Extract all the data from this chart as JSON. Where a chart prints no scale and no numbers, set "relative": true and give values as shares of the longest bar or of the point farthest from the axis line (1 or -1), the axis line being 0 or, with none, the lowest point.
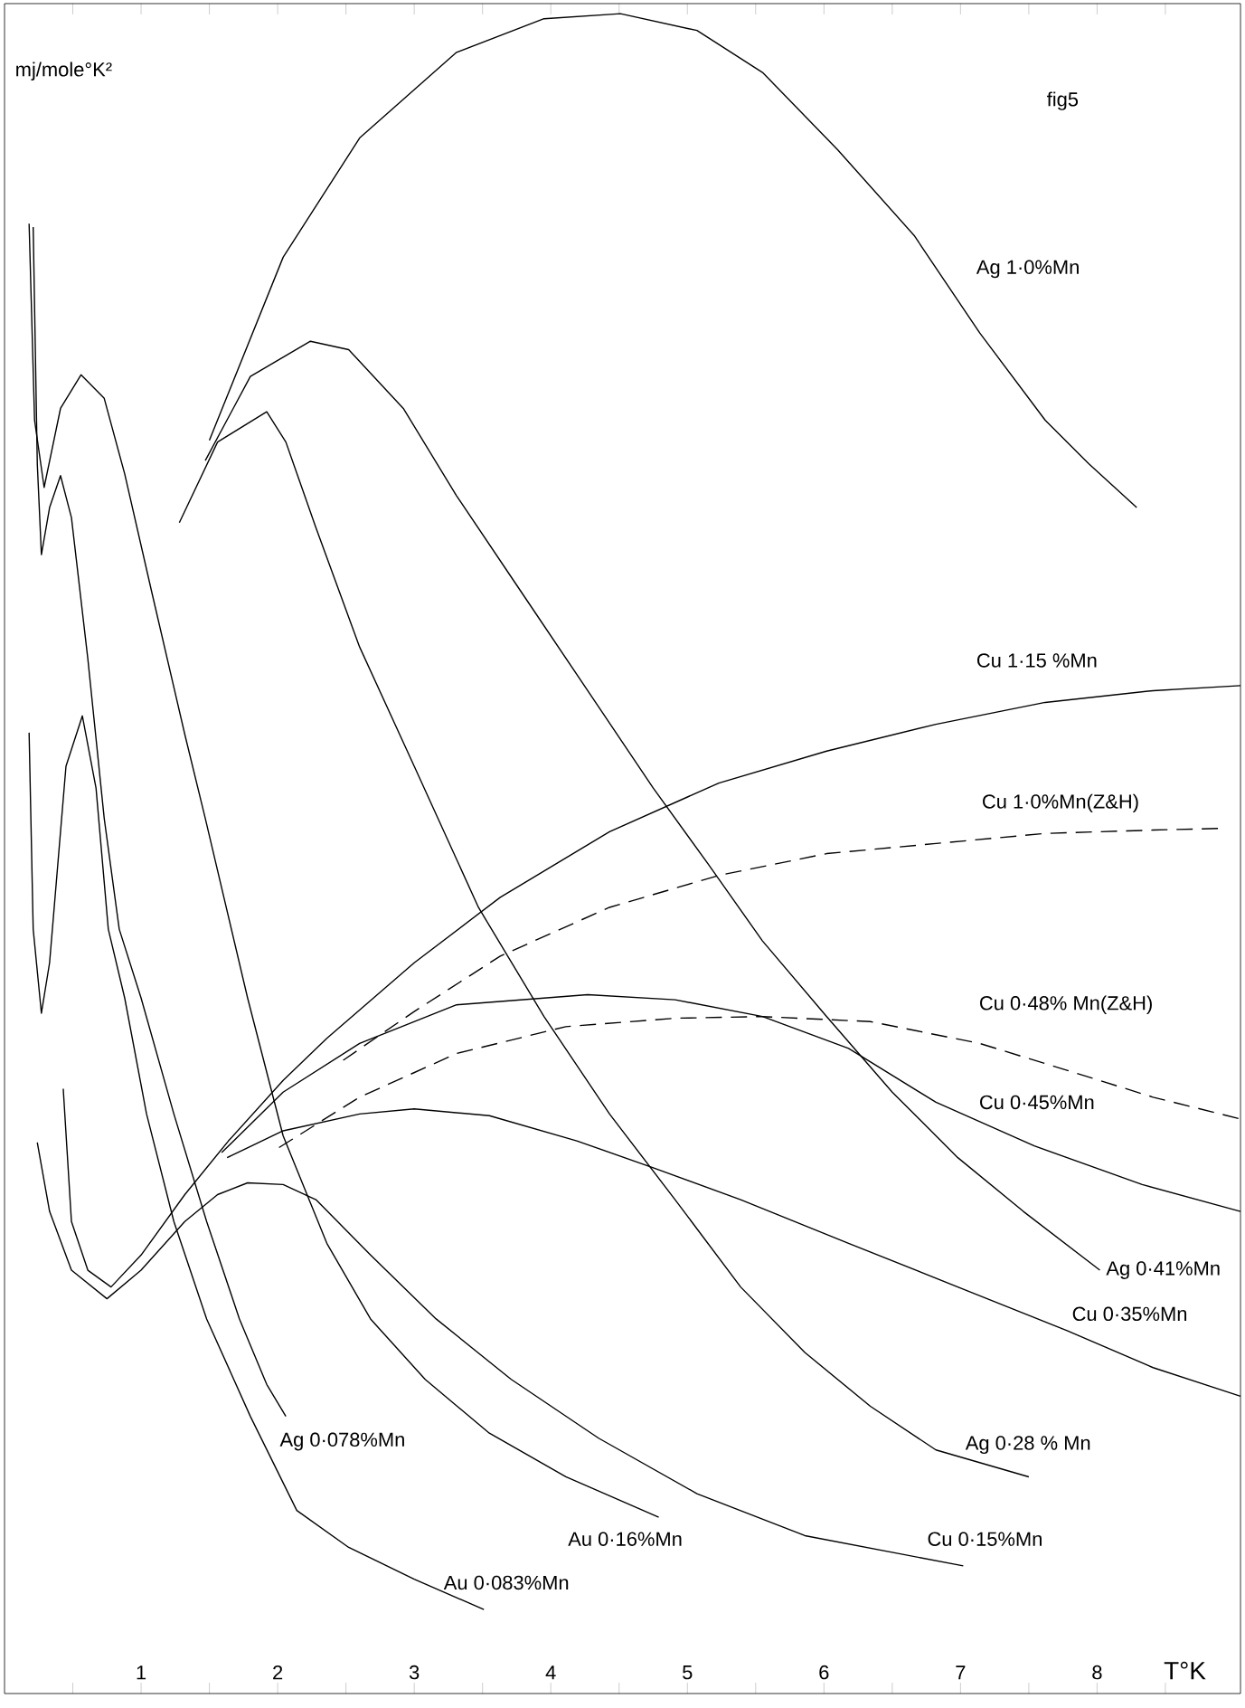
{
  "chart_data": {
    "type": "line",
    "relative": true,
    "ylabel": "mj/mole°K²",
    "xlabel": "T°K",
    "annotations": [
      "fig5"
    ],
    "marker": "none",
    "xlim": [
      0,
      9.05
    ],
    "xticks": [
      {
        "value": 0.5,
        "label": null
      },
      1,
      {
        "value": 1.5,
        "label": null
      },
      2,
      {
        "value": 2.5,
        "label": null
      },
      3,
      {
        "value": 3.5,
        "label": null
      },
      4,
      {
        "value": 4.5,
        "label": null
      },
      5,
      {
        "value": 5.5,
        "label": null
      },
      6,
      {
        "value": 6.5,
        "label": null
      },
      7,
      {
        "value": 7.5,
        "label": null
      },
      8,
      {
        "value": 8.5,
        "label": null
      }
    ],
    "series": [
      {
        "name": "Ag 1·0%Mn",
        "color": "#000000",
        "x": [
          1.5,
          2.04,
          2.6,
          3.31,
          3.95,
          4.51,
          5.07,
          5.55,
          6.1,
          6.66,
          7.14,
          7.62,
          7.94,
          8.29
        ],
        "values": [
          0.746,
          0.855,
          0.926,
          0.977,
          0.997,
          1.0,
          0.99,
          0.965,
          0.919,
          0.868,
          0.81,
          0.758,
          0.732,
          0.706
        ]
      },
      {
        "name": "Ag 0·41%Mn",
        "color": "#000000",
        "x": [
          1.47,
          1.8,
          2.24,
          2.52,
          2.92,
          3.31,
          3.79,
          4.27,
          4.75,
          5.15,
          5.55,
          6.02,
          6.5,
          6.98,
          7.46,
          8.02
        ],
        "values": [
          0.734,
          0.784,
          0.805,
          0.8,
          0.765,
          0.713,
          0.655,
          0.597,
          0.539,
          0.494,
          0.448,
          0.403,
          0.358,
          0.319,
          0.287,
          0.252
        ]
      },
      {
        "name": "Ag 0·28 % Mn",
        "color": "#000000",
        "x": [
          1.28,
          1.56,
          1.92,
          2.06,
          2.28,
          2.6,
          3.0,
          3.47,
          3.95,
          4.43,
          4.91,
          5.39,
          5.86,
          6.34,
          6.82,
          7.5
        ],
        "values": [
          0.697,
          0.745,
          0.763,
          0.745,
          0.694,
          0.623,
          0.552,
          0.468,
          0.403,
          0.345,
          0.294,
          0.242,
          0.203,
          0.171,
          0.145,
          0.129
        ]
      },
      {
        "name": "Cu 1·15 %Mn",
        "color": "#000000",
        "x": [
          0.43,
          0.49,
          0.61,
          0.78,
          1.0,
          1.32,
          1.64,
          2.04,
          2.36,
          3.0,
          3.63,
          4.43,
          5.23,
          6.02,
          6.82,
          7.62,
          8.41,
          9.05
        ],
        "values": [
          0.36,
          0.281,
          0.252,
          0.242,
          0.261,
          0.297,
          0.329,
          0.365,
          0.39,
          0.435,
          0.474,
          0.513,
          0.542,
          0.561,
          0.577,
          0.59,
          0.597,
          0.6
        ]
      },
      {
        "name": "Cu 0·45%Mn",
        "color": "#000000",
        "x": [
          1.59,
          2.04,
          2.6,
          3.31,
          4.27,
          4.91,
          5.55,
          6.18,
          6.82,
          7.54,
          8.33,
          9.05
        ],
        "values": [
          0.322,
          0.358,
          0.387,
          0.41,
          0.416,
          0.413,
          0.403,
          0.384,
          0.352,
          0.326,
          0.303,
          0.287
        ]
      },
      {
        "name": "Cu 0·35%Mn",
        "color": "#000000",
        "x": [
          1.63,
          2.04,
          2.6,
          3.0,
          3.55,
          4.19,
          4.75,
          5.39,
          6.18,
          6.98,
          7.78,
          8.41,
          9.05
        ],
        "values": [
          0.319,
          0.335,
          0.345,
          0.348,
          0.344,
          0.329,
          0.313,
          0.294,
          0.268,
          0.242,
          0.216,
          0.194,
          0.177
        ]
      },
      {
        "name": "Cu 0·15%Mn",
        "color": "#000000",
        "x": [
          0.24,
          0.33,
          0.49,
          0.75,
          1.0,
          1.32,
          1.56,
          1.78,
          2.04,
          2.28,
          2.68,
          3.16,
          3.71,
          4.35,
          5.07,
          5.86,
          7.02
        ],
        "values": [
          0.328,
          0.287,
          0.252,
          0.235,
          0.252,
          0.281,
          0.297,
          0.304,
          0.303,
          0.294,
          0.261,
          0.223,
          0.187,
          0.152,
          0.119,
          0.094,
          0.076
        ]
      },
      {
        "name": "Cu 1·0%Mn(Z&H)",
        "color": "#000000",
        "line_style": "dashed",
        "x": [
          2.48,
          3.0,
          3.63,
          4.43,
          5.23,
          6.02,
          6.82,
          7.62,
          8.41,
          8.89
        ],
        "values": [
          0.377,
          0.406,
          0.439,
          0.468,
          0.487,
          0.5,
          0.506,
          0.512,
          0.514,
          0.515
        ]
      },
      {
        "name": "Cu 0·48% Mn(Z&H)",
        "color": "#000000",
        "line_style": "dashed",
        "x": [
          2.01,
          2.6,
          3.31,
          4.11,
          4.91,
          5.55,
          6.34,
          7.14,
          7.78,
          8.41,
          9.05
        ],
        "values": [
          0.325,
          0.355,
          0.381,
          0.397,
          0.402,
          0.403,
          0.4,
          0.387,
          0.371,
          0.355,
          0.342
        ]
      },
      {
        "name": "Au 0·16%Mn",
        "color": "#000000",
        "x": [
          0.18,
          0.22,
          0.29,
          0.41,
          0.56,
          0.73,
          0.88,
          1.08,
          1.32,
          1.47,
          1.78,
          2.04,
          2.36,
          2.68,
          3.08,
          3.55,
          4.11,
          4.79
        ],
        "values": [
          0.875,
          0.758,
          0.718,
          0.765,
          0.785,
          0.771,
          0.726,
          0.655,
          0.571,
          0.521,
          0.414,
          0.332,
          0.268,
          0.223,
          0.187,
          0.155,
          0.129,
          0.105
        ]
      },
      {
        "name": "Ag 0·078%Mn",
        "color": "#000000",
        "x": [
          0.21,
          0.24,
          0.27,
          0.33,
          0.41,
          0.49,
          0.61,
          0.73,
          0.84,
          1.0,
          1.24,
          1.48,
          1.72,
          1.92,
          2.06
        ],
        "values": [
          0.873,
          0.732,
          0.678,
          0.706,
          0.725,
          0.7,
          0.616,
          0.521,
          0.455,
          0.414,
          0.345,
          0.281,
          0.223,
          0.184,
          0.165
        ]
      },
      {
        "name": "Au 0·083%Mn",
        "color": "#000000",
        "x": [
          0.18,
          0.21,
          0.27,
          0.33,
          0.45,
          0.57,
          0.67,
          0.76,
          0.88,
          1.04,
          1.24,
          1.48,
          1.8,
          2.14,
          2.52,
          3.0,
          3.51
        ],
        "values": [
          0.572,
          0.455,
          0.405,
          0.435,
          0.552,
          0.582,
          0.539,
          0.455,
          0.414,
          0.345,
          0.281,
          0.223,
          0.165,
          0.109,
          0.087,
          0.068,
          0.05
        ]
      }
    ]
  }
}
